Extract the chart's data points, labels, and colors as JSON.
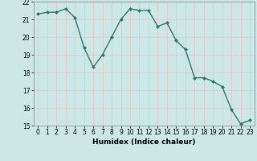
{
  "x": [
    0,
    1,
    2,
    3,
    4,
    5,
    6,
    7,
    8,
    9,
    10,
    11,
    12,
    13,
    14,
    15,
    16,
    17,
    18,
    19,
    20,
    21,
    22,
    23
  ],
  "y": [
    21.3,
    21.4,
    21.4,
    21.6,
    21.1,
    19.4,
    18.3,
    19.0,
    20.0,
    21.0,
    21.6,
    21.5,
    21.5,
    20.6,
    20.8,
    19.8,
    19.3,
    17.7,
    17.7,
    17.5,
    17.2,
    15.9,
    15.1,
    15.3
  ],
  "xlabel": "Humidex (Indice chaleur)",
  "ylim": [
    15,
    22
  ],
  "xlim": [
    -0.5,
    23.5
  ],
  "bg_color": "#cce8e6",
  "grid_color": "#e8c8c8",
  "line_color": "#2d7a6a",
  "marker": "D",
  "marker_size": 2.0,
  "line_width": 1.0,
  "yticks": [
    15,
    16,
    17,
    18,
    19,
    20,
    21,
    22
  ],
  "xticks": [
    0,
    1,
    2,
    3,
    4,
    5,
    6,
    7,
    8,
    9,
    10,
    11,
    12,
    13,
    14,
    15,
    16,
    17,
    18,
    19,
    20,
    21,
    22,
    23
  ],
  "tick_fontsize": 5.5,
  "xlabel_fontsize": 6.5
}
